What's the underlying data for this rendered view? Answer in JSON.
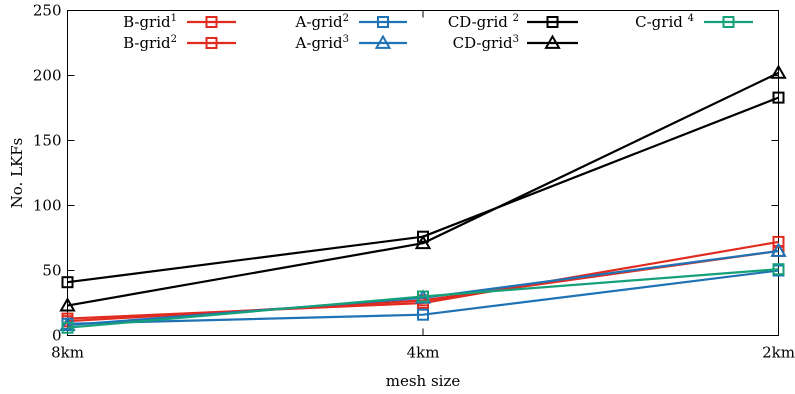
{
  "chart_data": {
    "type": "line",
    "title": "",
    "xlabel": "mesh size",
    "ylabel": "No. LKFs",
    "categories": [
      "8km",
      "4km",
      "2km"
    ],
    "ylim": [
      0,
      250
    ],
    "yticks": [
      "0",
      "50",
      "100",
      "150",
      "200",
      "250"
    ],
    "legend": "top",
    "grid": false,
    "series": [
      {
        "name": "B-grid",
        "sup": "1",
        "color": "#e02b20",
        "marker": "square",
        "values": [
          13,
          25,
          72
        ]
      },
      {
        "name": "B-grid",
        "sup": "2",
        "color": "#e02b20",
        "marker": "square",
        "values": [
          11,
          27,
          65
        ]
      },
      {
        "name": "A-grid",
        "sup": "2",
        "color": "#1f73b5",
        "marker": "square",
        "values": [
          9,
          16,
          50
        ]
      },
      {
        "name": "A-grid",
        "sup": "3",
        "color": "#1f73b5",
        "marker": "triangle",
        "values": [
          8,
          29,
          65
        ]
      },
      {
        "name": "CD-grid ",
        "sup": "2",
        "color": "#000000",
        "marker": "square",
        "values": [
          41,
          76,
          183
        ]
      },
      {
        "name": "CD-grid",
        "sup": "3",
        "color": "#000000",
        "marker": "triangle",
        "values": [
          23,
          71,
          202
        ]
      },
      {
        "name": "C-grid ",
        "sup": "4",
        "color": "#15a07a",
        "marker": "square",
        "values": [
          6,
          30,
          51
        ]
      }
    ]
  }
}
